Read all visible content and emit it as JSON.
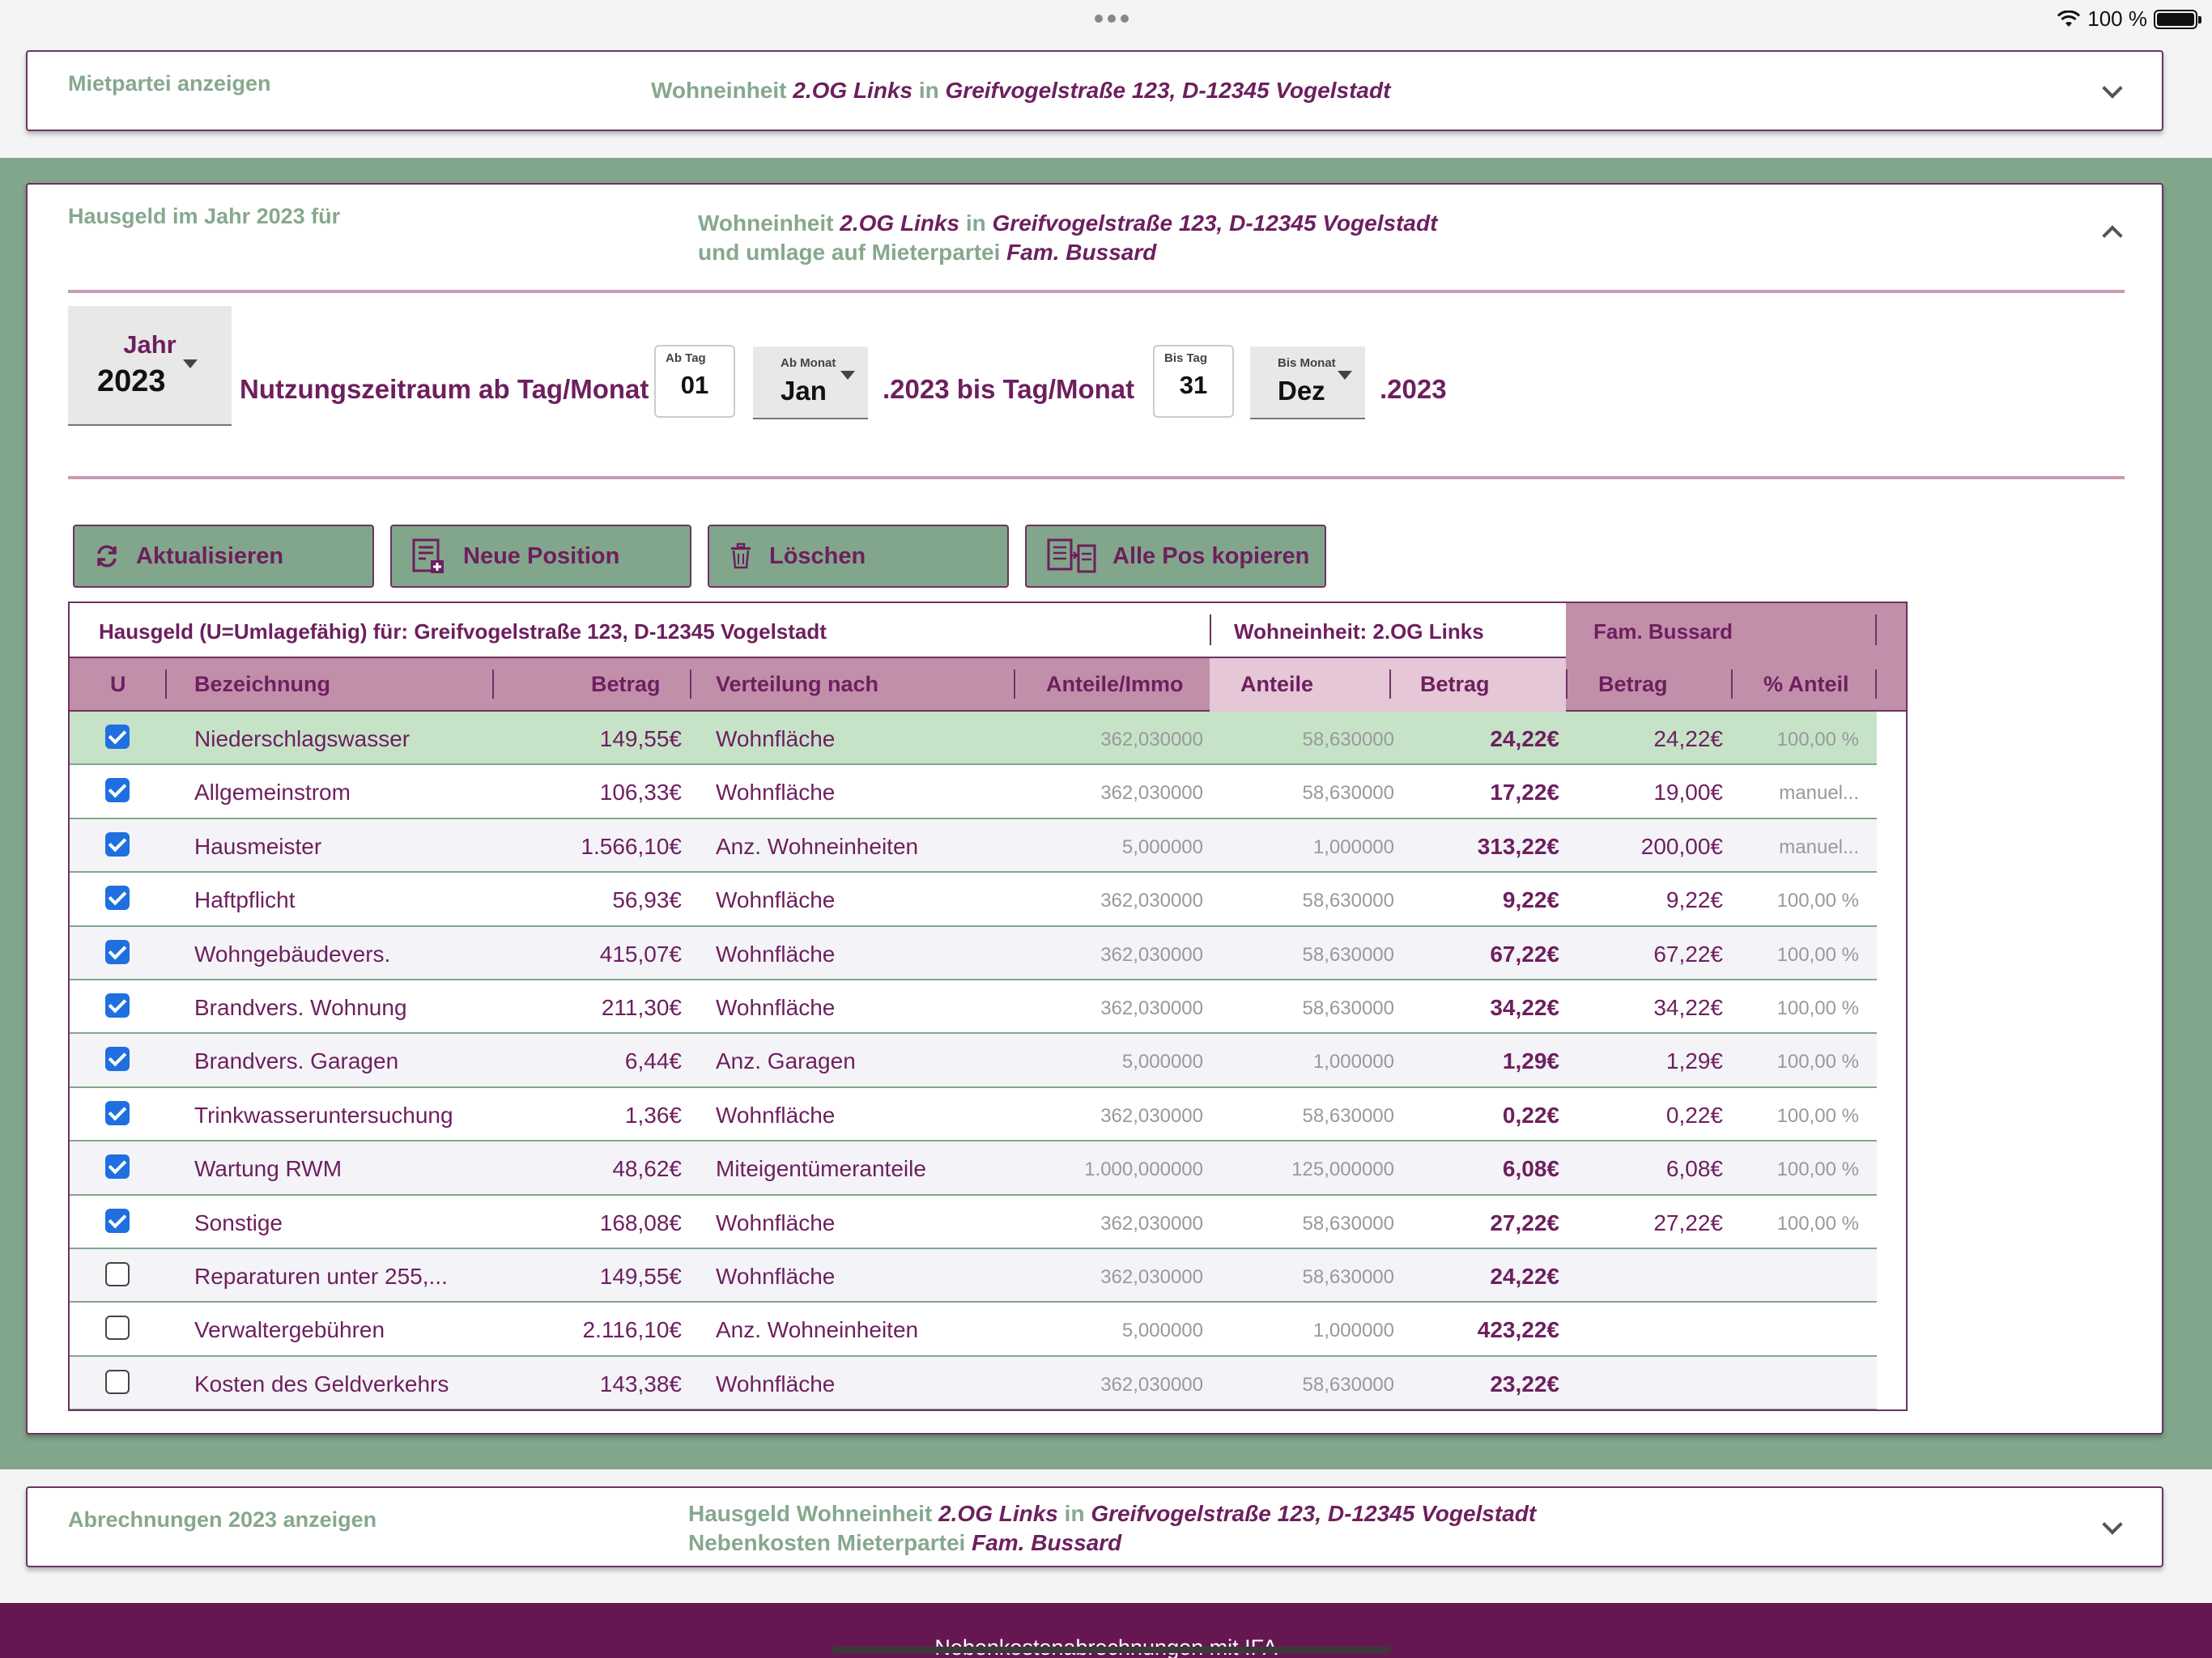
{
  "status": {
    "battery": "100 %"
  },
  "mietpartei": {
    "label": "Mietpartei anzeigen",
    "prefix": "Wohneinheit ",
    "unit": "2.OG Links",
    "in": " in ",
    "address": "Greifvogelstraße 123, D-12345 Vogelstadt"
  },
  "hausgeld": {
    "label": "Hausgeld im Jahr 2023 für",
    "line1_prefix": "Wohneinheit ",
    "unit": "2.OG Links",
    "in": " in ",
    "address": "Greifvogelstraße 123, D-12345 Vogelstadt",
    "line2_prefix": "und umlage auf Mieterpartei ",
    "tenant": "Fam. Bussard"
  },
  "controls": {
    "year_label": "Jahr",
    "year": "2023",
    "nutzung_label": "Nutzungszeitraum ab Tag/Monat",
    "ab_tag_label": "Ab Tag",
    "ab_tag": "01",
    "ab_monat_label": "Ab Monat",
    "ab_monat": "Jan",
    "bis_text": ".2023 bis Tag/Monat",
    "bis_tag_label": "Bis Tag",
    "bis_tag": "31",
    "bis_monat_label": "Bis Monat",
    "bis_monat": "Dez",
    "end_text": ".2023"
  },
  "buttons": {
    "refresh": "Aktualisieren",
    "new": "Neue Position",
    "delete": "Löschen",
    "copy": "Alle Pos kopieren"
  },
  "table": {
    "header_main": "Hausgeld (U=Umlagefähig) für: Greifvogelstraße 123, D-12345 Vogelstadt",
    "header_unit": "Wohneinheit: 2.OG Links",
    "header_tenant": "Fam. Bussard",
    "columns": {
      "u": "U",
      "bezeichnung": "Bezeichnung",
      "betrag": "Betrag",
      "verteilung": "Verteilung nach",
      "anteile_immo": "Anteile/Immo",
      "anteile": "Anteile",
      "betrag_unit": "Betrag",
      "betrag_tenant": "Betrag",
      "pct": "% Anteil"
    },
    "rows": [
      {
        "u": true,
        "name": "Niederschlagswasser",
        "betrag": "149,55€",
        "verteilung": "Wohnfläche",
        "immo": "362,030000",
        "anteile": "58,630000",
        "unit_betrag": "24,22€",
        "tenant_betrag": "24,22€",
        "pct": "100,00 %"
      },
      {
        "u": true,
        "name": "Allgemeinstrom",
        "betrag": "106,33€",
        "verteilung": "Wohnfläche",
        "immo": "362,030000",
        "anteile": "58,630000",
        "unit_betrag": "17,22€",
        "tenant_betrag": "19,00€",
        "pct": "manuel..."
      },
      {
        "u": true,
        "name": "Hausmeister",
        "betrag": "1.566,10€",
        "verteilung": "Anz. Wohneinheiten",
        "immo": "5,000000",
        "anteile": "1,000000",
        "unit_betrag": "313,22€",
        "tenant_betrag": "200,00€",
        "pct": "manuel..."
      },
      {
        "u": true,
        "name": "Haftpflicht",
        "betrag": "56,93€",
        "verteilung": "Wohnfläche",
        "immo": "362,030000",
        "anteile": "58,630000",
        "unit_betrag": "9,22€",
        "tenant_betrag": "9,22€",
        "pct": "100,00 %"
      },
      {
        "u": true,
        "name": "Wohngebäudevers.",
        "betrag": "415,07€",
        "verteilung": "Wohnfläche",
        "immo": "362,030000",
        "anteile": "58,630000",
        "unit_betrag": "67,22€",
        "tenant_betrag": "67,22€",
        "pct": "100,00 %"
      },
      {
        "u": true,
        "name": "Brandvers. Wohnung",
        "betrag": "211,30€",
        "verteilung": "Wohnfläche",
        "immo": "362,030000",
        "anteile": "58,630000",
        "unit_betrag": "34,22€",
        "tenant_betrag": "34,22€",
        "pct": "100,00 %"
      },
      {
        "u": true,
        "name": "Brandvers. Garagen",
        "betrag": "6,44€",
        "verteilung": "Anz. Garagen",
        "immo": "5,000000",
        "anteile": "1,000000",
        "unit_betrag": "1,29€",
        "tenant_betrag": "1,29€",
        "pct": "100,00 %"
      },
      {
        "u": true,
        "name": "Trinkwasseruntersuchung",
        "betrag": "1,36€",
        "verteilung": "Wohnfläche",
        "immo": "362,030000",
        "anteile": "58,630000",
        "unit_betrag": "0,22€",
        "tenant_betrag": "0,22€",
        "pct": "100,00 %"
      },
      {
        "u": true,
        "name": "Wartung RWM",
        "betrag": "48,62€",
        "verteilung": "Miteigentümeranteile",
        "immo": "1.000,000000",
        "anteile": "125,000000",
        "unit_betrag": "6,08€",
        "tenant_betrag": "6,08€",
        "pct": "100,00 %"
      },
      {
        "u": true,
        "name": "Sonstige",
        "betrag": "168,08€",
        "verteilung": "Wohnfläche",
        "immo": "362,030000",
        "anteile": "58,630000",
        "unit_betrag": "27,22€",
        "tenant_betrag": "27,22€",
        "pct": "100,00 %"
      },
      {
        "u": false,
        "name": "Reparaturen unter 255,...",
        "betrag": "149,55€",
        "verteilung": "Wohnfläche",
        "immo": "362,030000",
        "anteile": "58,630000",
        "unit_betrag": "24,22€",
        "tenant_betrag": "",
        "pct": ""
      },
      {
        "u": false,
        "name": "Verwaltergebühren",
        "betrag": "2.116,10€",
        "verteilung": "Anz. Wohneinheiten",
        "immo": "5,000000",
        "anteile": "1,000000",
        "unit_betrag": "423,22€",
        "tenant_betrag": "",
        "pct": ""
      },
      {
        "u": false,
        "name": "Kosten des Geldverkehrs",
        "betrag": "143,38€",
        "verteilung": "Wohnfläche",
        "immo": "362,030000",
        "anteile": "58,630000",
        "unit_betrag": "23,22€",
        "tenant_betrag": "",
        "pct": ""
      }
    ]
  },
  "abrechnungen": {
    "label": "Abrechnungen 2023 anzeigen",
    "line1_prefix": "Hausgeld Wohneinheit ",
    "unit": "2.OG Links",
    "in": " in ",
    "address": "Greifvogelstraße 123, D-12345 Vogelstadt",
    "line2_prefix": "Nebenkosten Mieterpartei ",
    "tenant": "Fam. Bussard"
  },
  "footer": {
    "text": "Nebenkostenabrechnungen mit IFA"
  },
  "colors": {
    "accent": "#6d1f5e",
    "green": "#82a68b",
    "header_pink": "#c28fab",
    "highlight": "#c6e3c8"
  }
}
